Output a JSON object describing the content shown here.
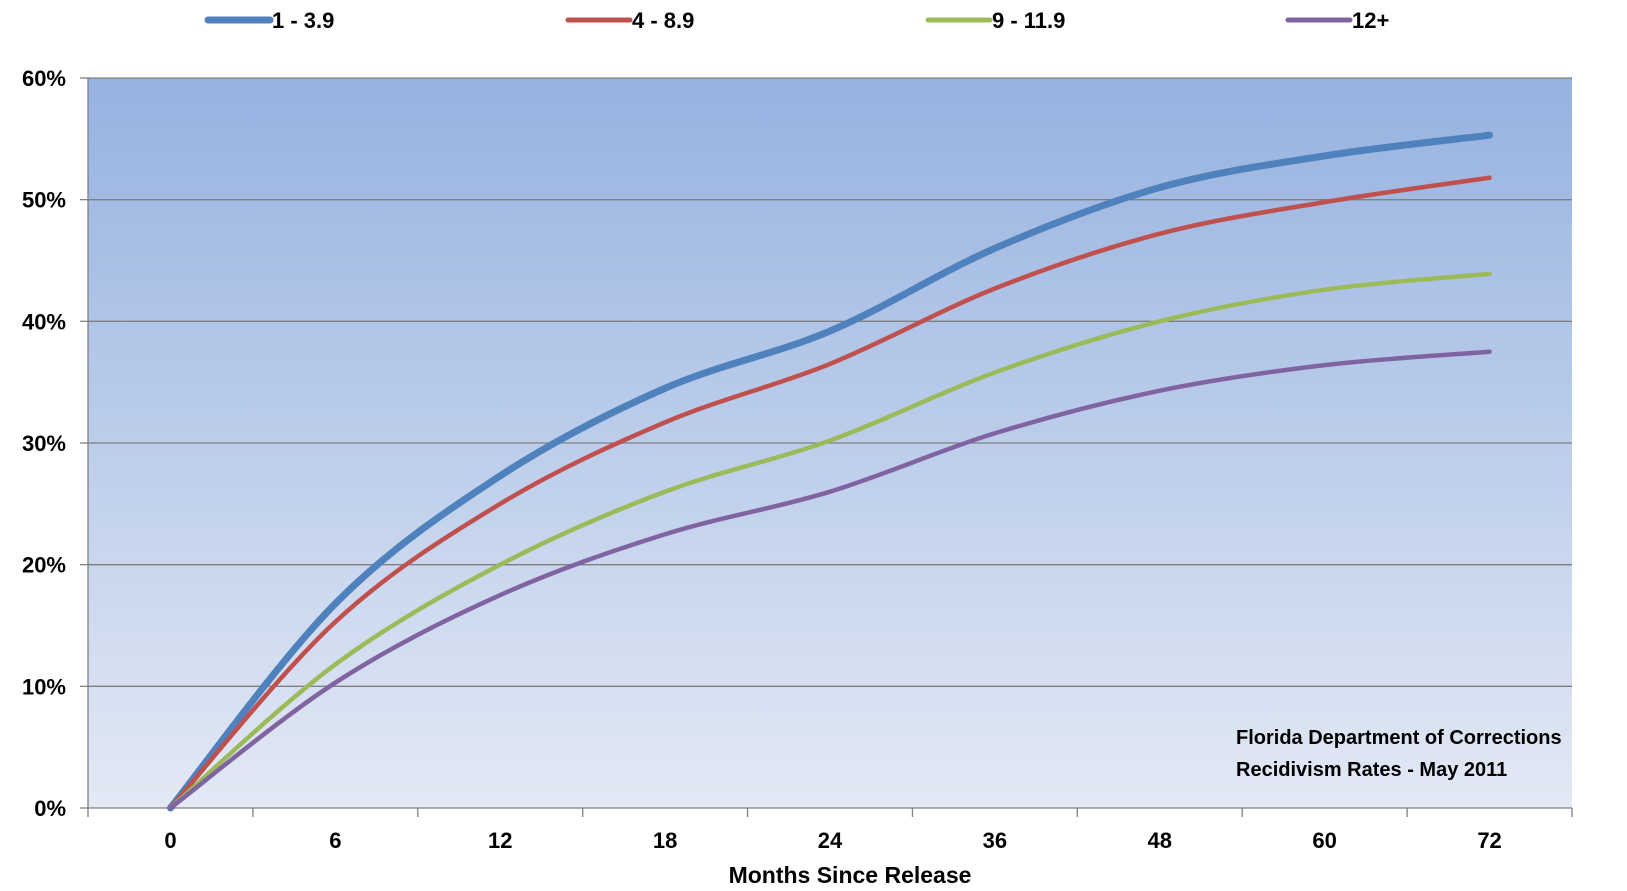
{
  "chart_data": {
    "type": "line",
    "xlabel": "Months Since Release",
    "ylabel": "",
    "x_ticks": [
      0,
      6,
      12,
      18,
      24,
      36,
      48,
      60,
      72
    ],
    "y_ticks": [
      "0%",
      "10%",
      "20%",
      "30%",
      "40%",
      "50%",
      "60%"
    ],
    "ylim": [
      0,
      60
    ],
    "grid": true,
    "legend_position": "top",
    "annotation": [
      "Florida Department of Corrections",
      "Recidivism Rates  - May 2011"
    ],
    "series": [
      {
        "name": "1 - 3.9",
        "color": "#4F81BD",
        "values": [
          0,
          16.8,
          27.3,
          34.5,
          39.2,
          46.0,
          51.0,
          53.6,
          55.3
        ]
      },
      {
        "name": "4 - 8.9",
        "color": "#C0504D",
        "values": [
          0,
          15.3,
          25.0,
          31.7,
          36.5,
          42.7,
          47.2,
          49.8,
          51.8
        ]
      },
      {
        "name": "9 - 11.9",
        "color": "#9BBB59",
        "values": [
          0,
          11.8,
          20.0,
          26.0,
          30.2,
          35.8,
          40.0,
          42.6,
          43.9
        ]
      },
      {
        "name": "12+",
        "color": "#8064A2",
        "values": [
          0,
          10.3,
          17.5,
          22.5,
          26.0,
          30.8,
          34.3,
          36.4,
          37.5
        ]
      }
    ]
  }
}
